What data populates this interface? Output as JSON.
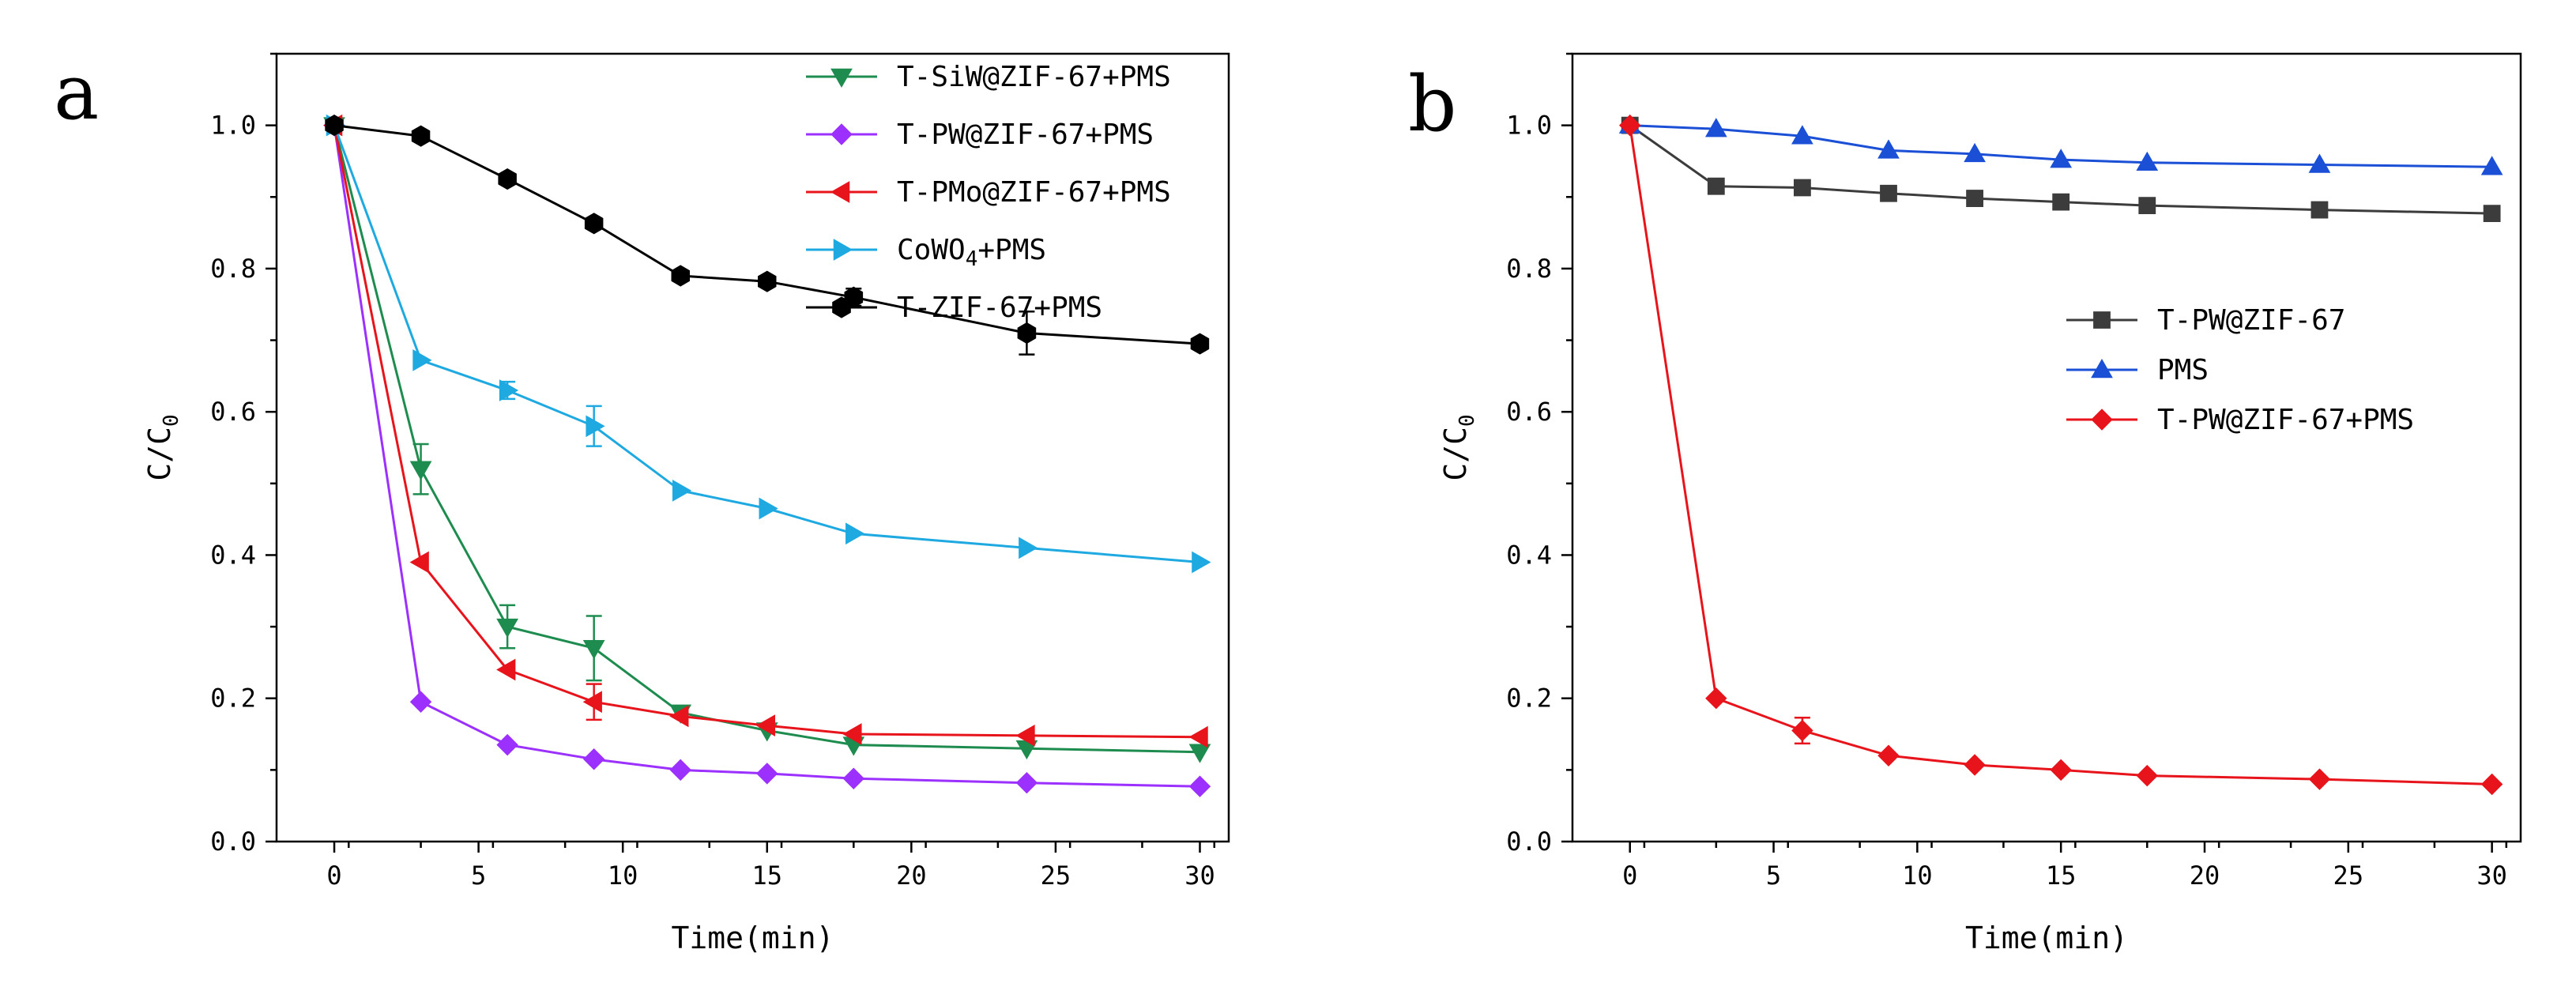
{
  "chart_data": [
    {
      "type": "line",
      "panel": "a",
      "xlabel": "Time(min)",
      "ylabel_main": "C/C",
      "ylabel_sub": "0",
      "xlim": [
        -2,
        31
      ],
      "ylim": [
        0,
        1.1
      ],
      "xticks": [
        0,
        5,
        10,
        15,
        20,
        25,
        30
      ],
      "yticks": [
        0.0,
        0.2,
        0.4,
        0.6,
        0.8,
        1.0
      ],
      "xtick_labels": [
        "0",
        "5",
        "10",
        "15",
        "20",
        "25",
        "30"
      ],
      "ytick_labels": [
        "0.0",
        "0.2",
        "0.4",
        "0.6",
        "0.8",
        "1.0"
      ],
      "legend_position": "top-right",
      "series": [
        {
          "name": "T-SiW@ZIF-67+PMS",
          "color": "#1e8c4e",
          "marker": "triangle-down",
          "x": [
            0,
            3,
            6,
            9,
            12,
            15,
            18,
            24,
            30
          ],
          "values": [
            1.0,
            0.52,
            0.3,
            0.27,
            0.18,
            0.155,
            0.135,
            0.13,
            0.125
          ],
          "errors": [
            0,
            0.035,
            0.03,
            0.045,
            0,
            0,
            0,
            0,
            0
          ]
        },
        {
          "name": "T-PW@ZIF-67+PMS",
          "color": "#9b30ff",
          "marker": "diamond",
          "x": [
            0,
            3,
            6,
            9,
            12,
            15,
            18,
            24,
            30
          ],
          "values": [
            1.0,
            0.195,
            0.135,
            0.115,
            0.1,
            0.095,
            0.088,
            0.082,
            0.077
          ],
          "errors": [
            0,
            0,
            0,
            0,
            0,
            0,
            0,
            0,
            0
          ]
        },
        {
          "name": "T-PMo@ZIF-67+PMS",
          "color": "#e8141c",
          "marker": "triangle-left",
          "x": [
            0,
            3,
            6,
            9,
            12,
            15,
            18,
            24,
            30
          ],
          "values": [
            1.0,
            0.39,
            0.24,
            0.195,
            0.175,
            0.162,
            0.15,
            0.148,
            0.146
          ],
          "errors": [
            0,
            0,
            0,
            0.025,
            0,
            0,
            0,
            0,
            0
          ]
        },
        {
          "name": "CoWO",
          "name_sub": "4",
          "name_suffix": "+PMS",
          "color": "#1fa9e1",
          "marker": "triangle-right",
          "x": [
            0,
            3,
            6,
            9,
            12,
            15,
            18,
            24,
            30
          ],
          "values": [
            1.0,
            0.672,
            0.63,
            0.58,
            0.49,
            0.465,
            0.43,
            0.41,
            0.39
          ],
          "errors": [
            0,
            0,
            0.012,
            0.028,
            0,
            0,
            0,
            0,
            0
          ]
        },
        {
          "name": "T-ZIF-67+PMS",
          "color": "#000000",
          "marker": "hexagon",
          "x": [
            0,
            3,
            6,
            9,
            12,
            15,
            18,
            24,
            30
          ],
          "values": [
            1.0,
            0.985,
            0.925,
            0.863,
            0.79,
            0.782,
            0.76,
            0.71,
            0.695
          ],
          "errors": [
            0,
            0,
            0,
            0,
            0,
            0,
            0.012,
            0.03,
            0
          ]
        }
      ]
    },
    {
      "type": "line",
      "panel": "b",
      "xlabel": "Time(min)",
      "ylabel_main": "C/C",
      "ylabel_sub": "0",
      "xlim": [
        -2,
        31
      ],
      "ylim": [
        0,
        1.1
      ],
      "xticks": [
        0,
        5,
        10,
        15,
        20,
        25,
        30
      ],
      "yticks": [
        0.0,
        0.2,
        0.4,
        0.6,
        0.8,
        1.0
      ],
      "xtick_labels": [
        "0",
        "5",
        "10",
        "15",
        "20",
        "25",
        "30"
      ],
      "ytick_labels": [
        "0.0",
        "0.2",
        "0.4",
        "0.6",
        "0.8",
        "1.0"
      ],
      "legend_position": "center-right",
      "series": [
        {
          "name": "T-PW@ZIF-67",
          "color": "#3c3c3c",
          "marker": "square",
          "x": [
            0,
            3,
            6,
            9,
            12,
            15,
            18,
            24,
            30
          ],
          "values": [
            1.0,
            0.915,
            0.913,
            0.905,
            0.898,
            0.893,
            0.888,
            0.882,
            0.877
          ],
          "errors": [
            0,
            0,
            0,
            0,
            0,
            0,
            0,
            0,
            0
          ]
        },
        {
          "name": "PMS",
          "color": "#1a4fd6",
          "marker": "triangle-up",
          "x": [
            0,
            3,
            6,
            9,
            12,
            15,
            18,
            24,
            30
          ],
          "values": [
            1.0,
            0.995,
            0.985,
            0.965,
            0.96,
            0.952,
            0.948,
            0.945,
            0.942
          ],
          "errors": [
            0,
            0,
            0,
            0,
            0,
            0,
            0,
            0,
            0
          ]
        },
        {
          "name": "T-PW@ZIF-67+PMS",
          "color": "#e8141c",
          "marker": "diamond",
          "x": [
            0,
            3,
            6,
            9,
            12,
            15,
            18,
            24,
            30
          ],
          "values": [
            1.0,
            0.2,
            0.155,
            0.12,
            0.107,
            0.1,
            0.092,
            0.087,
            0.08
          ],
          "errors": [
            0,
            0,
            0.018,
            0,
            0,
            0,
            0,
            0,
            0
          ]
        }
      ]
    }
  ]
}
